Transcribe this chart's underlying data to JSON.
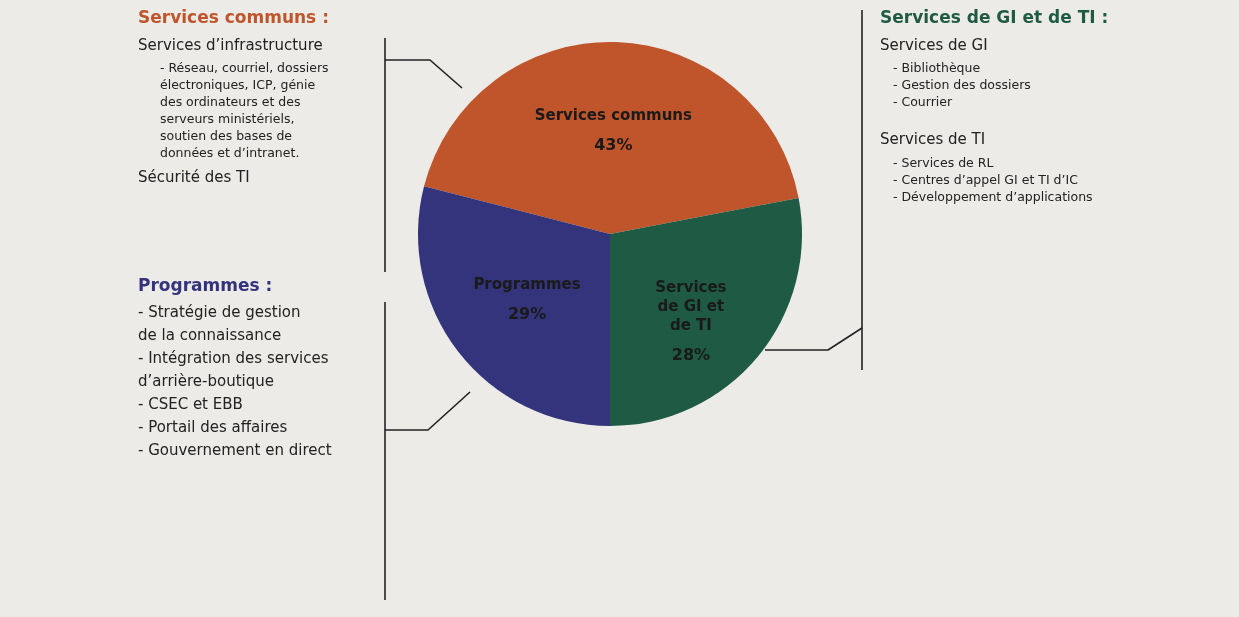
{
  "chart_data": {
    "type": "pie",
    "categories": [
      "Services communs",
      "Services de GI et de TI",
      "Programmes"
    ],
    "values": [
      43,
      28,
      29
    ],
    "colors": [
      "#c0552b",
      "#1f5a45",
      "#33347c"
    ],
    "value_labels": [
      "43%",
      "28%",
      "29%"
    ],
    "annotations": [
      "Services communs :",
      "Services d’infrastructure",
      "- Réseau, courriel, dossiers électroniques, ICP, génie des ordinateurs et des serveurs ministériels, soutien des bases de données et d’intranet.",
      "Sécurité des TI",
      "Programmes :",
      "- Stratégie de gestion de la connaissance",
      "- Intégration des services d’arrière-boutique",
      "- CSEC et EBB",
      "- Portail des affaires",
      "- Gouvernement en direct",
      "Services de GI et de TI :",
      "Services de GI",
      "- Bibliothèque",
      "- Gestion des dossiers",
      "- Courrier",
      "Services de TI",
      "- Services de RL",
      "- Centres d’appel GI et TI d’IC",
      "- Développement d’applications"
    ]
  }
}
